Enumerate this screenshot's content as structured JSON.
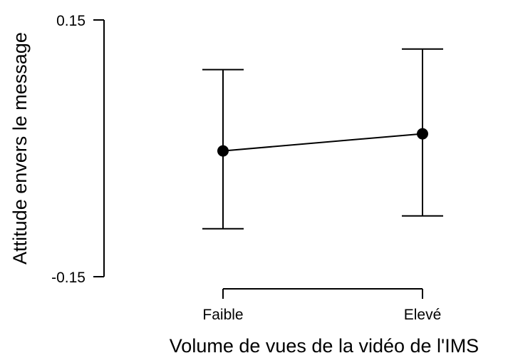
{
  "chart_data": {
    "type": "line",
    "title": "",
    "xlabel": "Volume de vues de la vidéo de l'IMS",
    "ylabel": "Attitude envers le message",
    "categories": [
      "Faible",
      "Elevé"
    ],
    "series": [
      {
        "values": [
          -0.003,
          0.017
        ],
        "error_lower": [
          -0.094,
          -0.079
        ],
        "error_upper": [
          0.092,
          0.116
        ]
      }
    ],
    "y_ticks": [
      "0.15",
      "-0.15"
    ],
    "ylim": [
      -0.15,
      0.15
    ],
    "grid": false,
    "colors": {
      "line": "#000000",
      "marker": "#000000"
    }
  }
}
